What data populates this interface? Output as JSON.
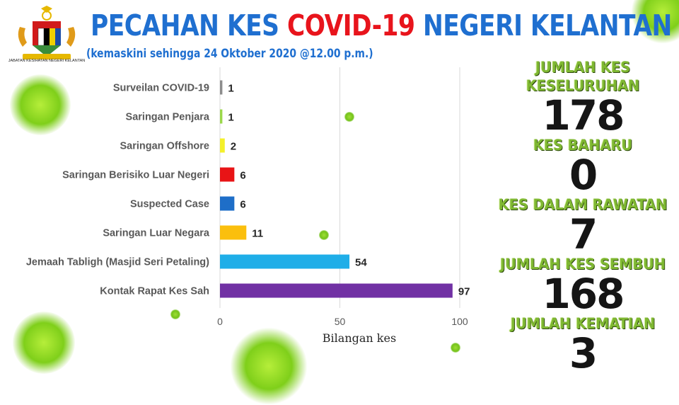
{
  "header": {
    "title_part1": "PECAHAN KES ",
    "title_part2": "COVID-19",
    "title_part3": " NEGERI KELANTAN",
    "subtitle": "(kemaskini sehingga 24 Oktober 2020 @12.00 p.m.)"
  },
  "logo": {
    "icon": "malaysia-coat-of-arms-icon",
    "caption": "JABATAN KESIHATAN NEGERI KELANTAN"
  },
  "chart_data": {
    "type": "bar",
    "orientation": "horizontal",
    "categories": [
      "Surveilan COVID-19",
      "Saringan Penjara",
      "Saringan Offshore",
      "Saringan Berisiko Luar Negeri",
      "Suspected Case",
      "Saringan Luar Negara",
      "Jemaah Tabligh (Masjid Seri Petaling)",
      "Kontak Rapat Kes Sah"
    ],
    "values": [
      1,
      1,
      2,
      6,
      6,
      11,
      54,
      97
    ],
    "colors": [
      "#8c8c8c",
      "#9bd84a",
      "#f4f02a",
      "#e81416",
      "#1e6ec8",
      "#fbbf0d",
      "#1faee8",
      "#7131a4"
    ],
    "xlabel": "Bilangan kes",
    "ylabel": "",
    "xlim": [
      0,
      100
    ],
    "xticks": [
      0,
      50,
      100
    ],
    "grid": true
  },
  "stats": [
    {
      "label": "JUMLAH KES KESELURUHAN",
      "value": "178"
    },
    {
      "label": "KES BAHARU",
      "value": "0"
    },
    {
      "label": "KES DALAM RAWATAN",
      "value": "7"
    },
    {
      "label": "JUMLAH KES SEMBUH",
      "value": "168"
    },
    {
      "label": "JUMLAH KEMATIAN",
      "value": "3"
    }
  ],
  "decorations": {
    "icon": "virus-icon",
    "color": "#7dc520"
  }
}
